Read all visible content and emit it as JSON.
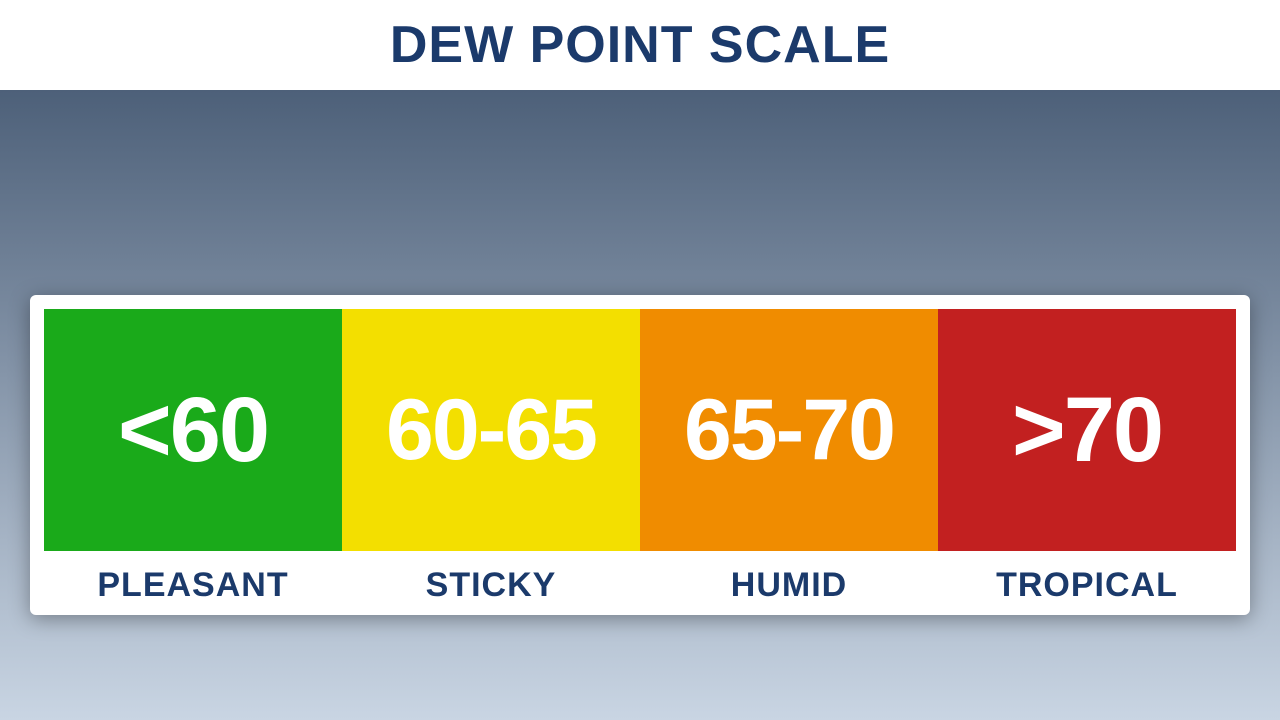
{
  "title": "DEW POINT SCALE",
  "title_color": "#1b3a6b",
  "title_fontsize": 52,
  "gradient_top": "#4d6079",
  "gradient_bottom": "#c9d5e3",
  "card_bg": "#ffffff",
  "label_color": "#1b3a6b",
  "label_fontsize": 34,
  "value_color": "#ffffff",
  "segments": [
    {
      "value": "<60",
      "label": "PLEASANT",
      "bg": "#1aaa1a",
      "fontsize": 92
    },
    {
      "value": "60-65",
      "label": "STICKY",
      "bg": "#f3df00",
      "fontsize": 86
    },
    {
      "value": "65-70",
      "label": "HUMID",
      "bg": "#f08c00",
      "fontsize": 86
    },
    {
      "value": ">70",
      "label": "TROPICAL",
      "bg": "#c22020",
      "fontsize": 92
    }
  ]
}
